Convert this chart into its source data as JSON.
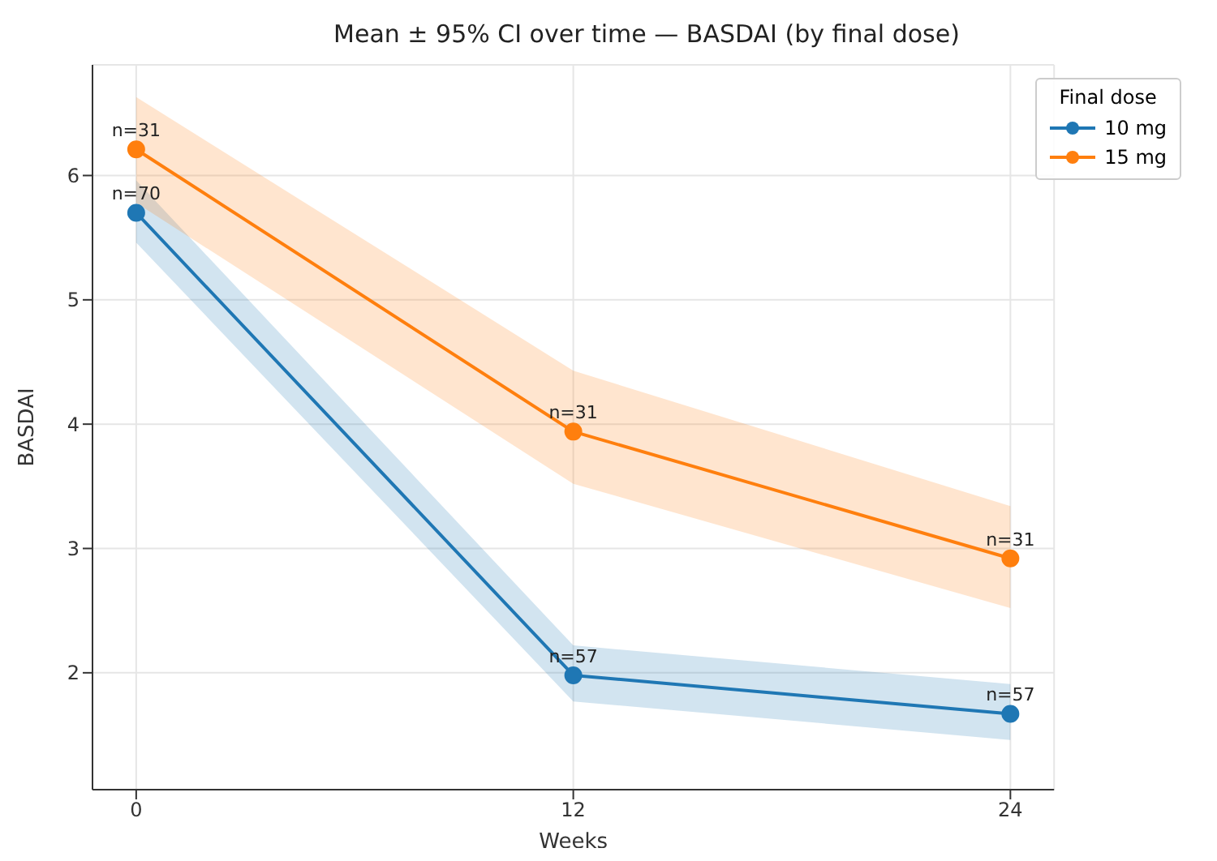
{
  "chart_data": {
    "type": "line",
    "title": "Mean ± 95% CI over time — BASDAI (by final dose)",
    "xlabel": "Weeks",
    "ylabel": "BASDAI",
    "legend_title": "Final dose",
    "x": [
      0,
      12,
      24
    ],
    "series": [
      {
        "name": "10 mg",
        "color": "#1f77b4",
        "values": [
          5.7,
          1.98,
          1.67
        ],
        "lower": [
          5.46,
          1.77,
          1.46
        ],
        "upper": [
          5.96,
          2.22,
          1.91
        ]
      },
      {
        "name": "15 mg",
        "color": "#ff7f0e",
        "values": [
          6.21,
          3.94,
          2.92
        ],
        "lower": [
          5.78,
          3.52,
          2.52
        ],
        "upper": [
          6.63,
          4.43,
          3.34
        ]
      }
    ],
    "annotations": [
      {
        "text": "n=70",
        "x": 0,
        "y": 5.7
      },
      {
        "text": "n=57",
        "x": 12,
        "y": 1.98
      },
      {
        "text": "n=57",
        "x": 24,
        "y": 1.67
      },
      {
        "text": "n=31",
        "x": 0,
        "y": 6.21
      },
      {
        "text": "n=31",
        "x": 12,
        "y": 3.94
      },
      {
        "text": "n=31",
        "x": 24,
        "y": 2.92
      }
    ],
    "xlim": [
      -1.2,
      25.2
    ],
    "xticks": [
      0,
      12,
      24
    ],
    "ylim": [
      1.06,
      6.89
    ],
    "yticks": [
      2,
      3,
      4,
      5,
      6
    ],
    "grid": true,
    "legend": "top right",
    "marker": "circle",
    "line_style": "solid"
  }
}
